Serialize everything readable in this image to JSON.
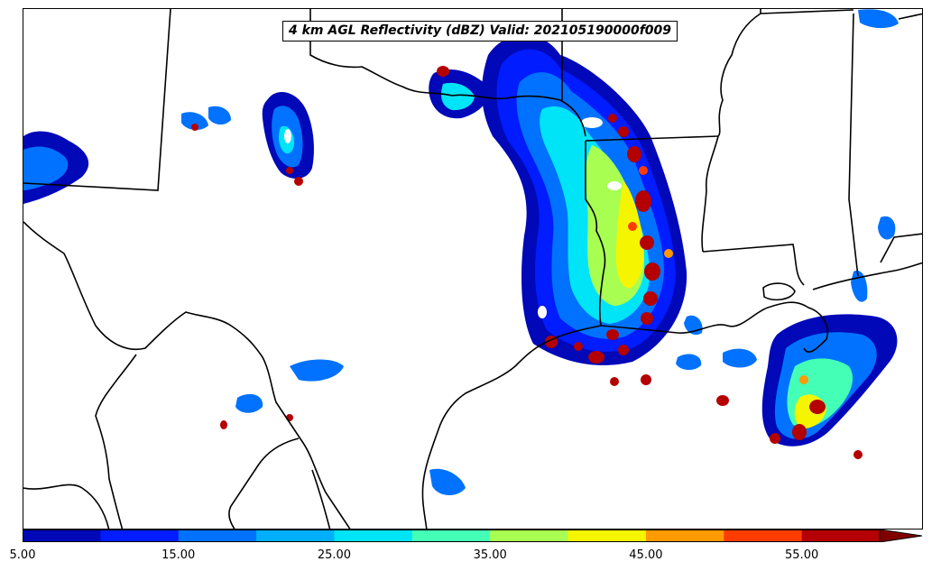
{
  "title": "4 km AGL Reflectivity (dBZ) Valid: 202105190000f009",
  "colorbar": {
    "levels": [
      5,
      10,
      15,
      20,
      25,
      30,
      35,
      40,
      45,
      50,
      55
    ],
    "colors": [
      "#0008b8",
      "#001cff",
      "#0072ff",
      "#00b0ff",
      "#00e4f8",
      "#44ffb6",
      "#a8ff52",
      "#f6f500",
      "#ff9a00",
      "#ff3c00",
      "#b40000"
    ],
    "extend_color": "#800000",
    "tick_labels": [
      "5.00",
      "15.00",
      "25.00",
      "35.00",
      "45.00",
      "55.00"
    ]
  },
  "map": {
    "region": "Texas / Louisiana / Gulf Coast",
    "line_color": "#000000"
  }
}
